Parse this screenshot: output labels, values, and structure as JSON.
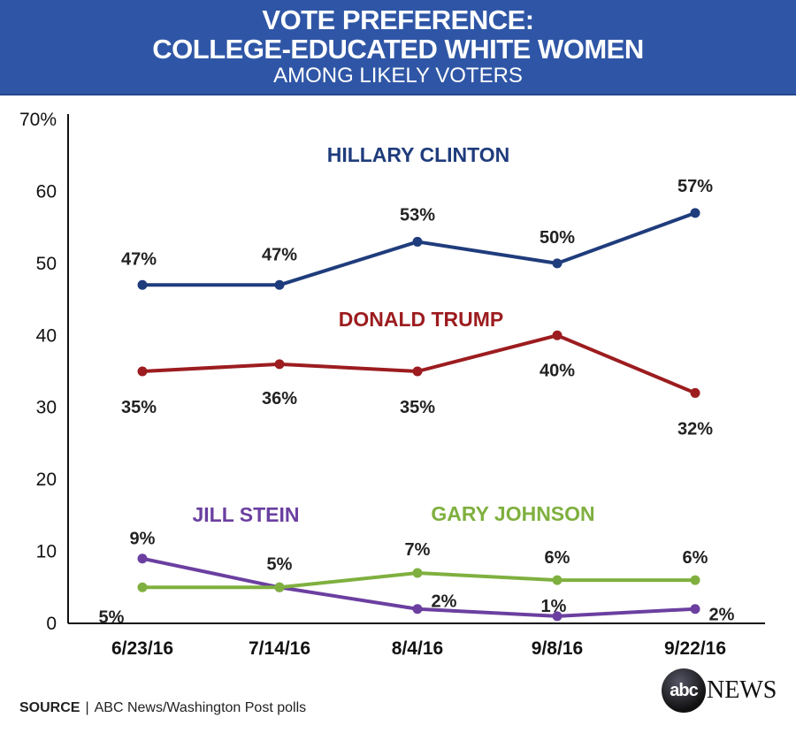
{
  "chart_data": {
    "type": "line",
    "title": "VOTE PREFERENCE:\nCOLLEGE-EDUCATED WHITE WOMEN",
    "subtitle": "AMONG LIKELY VOTERS",
    "categories": [
      "6/23/16",
      "7/14/16",
      "8/4/16",
      "9/8/16",
      "9/22/16"
    ],
    "ylim": [
      0,
      70
    ],
    "yticks": [
      "0",
      "10",
      "20",
      "30",
      "40",
      "50",
      "60",
      "70%"
    ],
    "grid": false,
    "series": [
      {
        "name": "HILLARY CLINTON",
        "color": "#1f3c7c",
        "values": [
          47,
          47,
          53,
          50,
          57
        ],
        "labels": [
          "47%",
          "47%",
          "53%",
          "50%",
          "57%"
        ]
      },
      {
        "name": "DONALD TRUMP",
        "color": "#9c1c1f",
        "values": [
          35,
          36,
          35,
          40,
          32
        ],
        "labels": [
          "35%",
          "36%",
          "35%",
          "40%",
          "32%"
        ]
      },
      {
        "name": "JILL STEIN",
        "color": "#6b3fa0",
        "values": [
          9,
          5,
          2,
          1,
          2
        ],
        "labels": [
          "9%",
          "",
          "2%",
          "1%",
          "2%"
        ]
      },
      {
        "name": "GARY JOHNSON",
        "color": "#7fb03f",
        "values": [
          5,
          5,
          7,
          6,
          6
        ],
        "labels": [
          "5%",
          "5%",
          "7%",
          "6%",
          "6%"
        ]
      }
    ],
    "source_label": "SOURCE",
    "source": "ABC News/Washington Post polls"
  },
  "logo": {
    "ball": "abc",
    "text": "NEWS"
  }
}
